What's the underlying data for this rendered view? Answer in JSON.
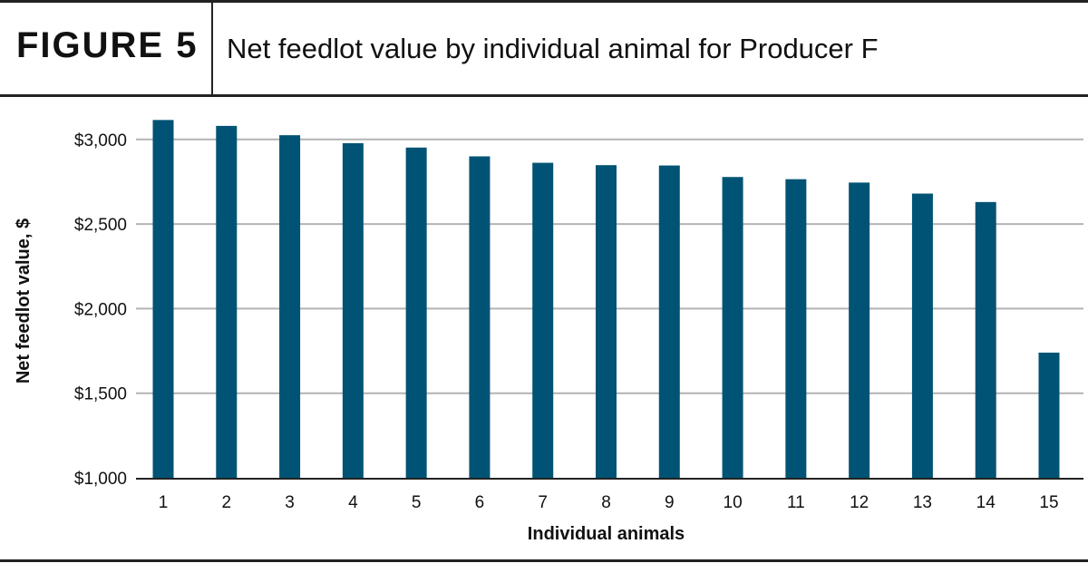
{
  "header": {
    "figure_label": "FIGURE 5",
    "title": "Net feedlot value by individual animal for Producer F"
  },
  "chart_data": {
    "type": "bar",
    "title": "Net feedlot value by individual animal for Producer F",
    "xlabel": "Individual animals",
    "ylabel": "Net feedlot value, $",
    "categories": [
      "1",
      "2",
      "3",
      "4",
      "5",
      "6",
      "7",
      "8",
      "9",
      "10",
      "11",
      "12",
      "13",
      "14",
      "15"
    ],
    "values": [
      3115,
      3080,
      3025,
      2978,
      2952,
      2900,
      2862,
      2848,
      2846,
      2778,
      2765,
      2745,
      2680,
      2630,
      1740
    ],
    "ylim": [
      1000,
      3250
    ],
    "yticks": [
      1000,
      1500,
      2000,
      2500,
      3000
    ],
    "ytick_labels": [
      "$1,000",
      "$1,500",
      "$2,000",
      "$2,500",
      "$3,000"
    ],
    "bar_color": "#005374",
    "grid": true,
    "grid_color": "#b3b3b3",
    "legend": "none"
  }
}
